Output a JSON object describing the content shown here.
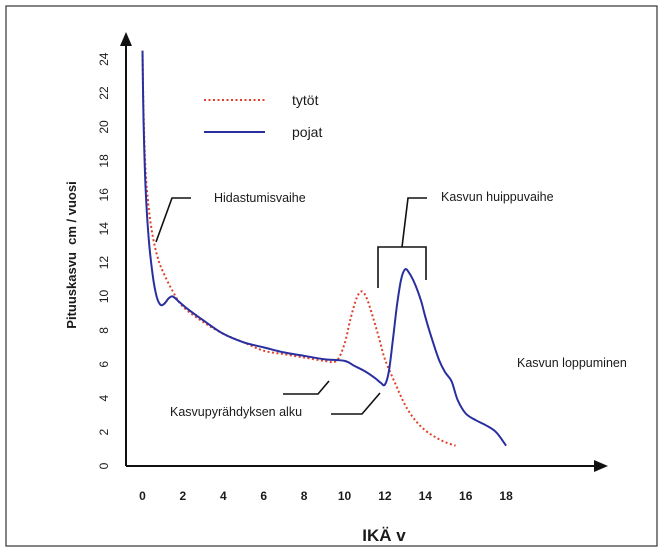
{
  "chart_data": {
    "type": "line",
    "xlabel": "IKÄ v",
    "ylabel": "Pituuskasvu  cm / vuosi",
    "x_ticks": [
      "0",
      "2",
      "4",
      "6",
      "8",
      "10",
      "12",
      "14",
      "16",
      "18"
    ],
    "y_ticks": [
      "0",
      "2",
      "4",
      "6",
      "8",
      "10",
      "12",
      "14",
      "16",
      "18",
      "20",
      "22",
      "24"
    ],
    "xlim": [
      -1,
      20
    ],
    "ylim": [
      0,
      25
    ],
    "grid": false,
    "legend_position": "top-left",
    "series": [
      {
        "name": "tytöt",
        "color": "#e0402a",
        "style": "dotted",
        "x": [
          0.0,
          0.05,
          0.15,
          0.3,
          0.5,
          0.75,
          1.0,
          1.5,
          2.0,
          3.0,
          4.0,
          5.0,
          6.0,
          7.0,
          8.0,
          9.0,
          9.6,
          10.0,
          10.3,
          10.6,
          10.85,
          11.1,
          11.4,
          11.7,
          12.0,
          12.5,
          13.0,
          13.5,
          14.0,
          14.5,
          15.0,
          15.5
        ],
        "y": [
          24.5,
          21.0,
          17.5,
          15.3,
          13.6,
          12.3,
          11.5,
          10.3,
          9.4,
          8.5,
          7.8,
          7.3,
          6.8,
          6.6,
          6.4,
          6.2,
          6.2,
          7.2,
          8.7,
          9.9,
          10.3,
          9.9,
          8.8,
          7.6,
          6.3,
          4.9,
          3.6,
          2.7,
          2.1,
          1.7,
          1.4,
          1.2
        ]
      },
      {
        "name": "pojat",
        "color": "#2a2fa0",
        "style": "solid",
        "x": [
          0.0,
          0.05,
          0.15,
          0.3,
          0.5,
          0.7,
          0.9,
          1.1,
          1.3,
          1.5,
          1.8,
          2.2,
          3.0,
          4.0,
          5.0,
          6.0,
          7.0,
          8.0,
          9.0,
          10.0,
          10.5,
          11.0,
          11.5,
          11.8,
          12.0,
          12.2,
          12.4,
          12.6,
          12.8,
          13.0,
          13.2,
          13.5,
          13.8,
          14.0,
          14.3,
          14.7,
          15.0,
          15.3,
          15.6,
          16.0,
          16.5,
          17.0,
          17.5,
          18.0
        ],
        "y": [
          24.5,
          20.5,
          16.5,
          13.5,
          11.3,
          10.0,
          9.5,
          9.6,
          9.9,
          10.0,
          9.7,
          9.3,
          8.6,
          7.8,
          7.3,
          7.0,
          6.7,
          6.5,
          6.3,
          6.2,
          5.9,
          5.6,
          5.2,
          4.9,
          4.8,
          5.6,
          7.5,
          9.5,
          11.0,
          11.6,
          11.4,
          10.7,
          9.7,
          8.8,
          7.6,
          6.2,
          5.5,
          5.0,
          3.9,
          3.1,
          2.7,
          2.4,
          2.0,
          1.2
        ]
      }
    ],
    "annotations": {
      "deceleration": "Hidastumisvaihe",
      "peak": "Kasvun huippuvaihe",
      "spurt_start": "Kasvupyrähdyksen alku",
      "cessation": "Kasvun loppuminen"
    }
  }
}
